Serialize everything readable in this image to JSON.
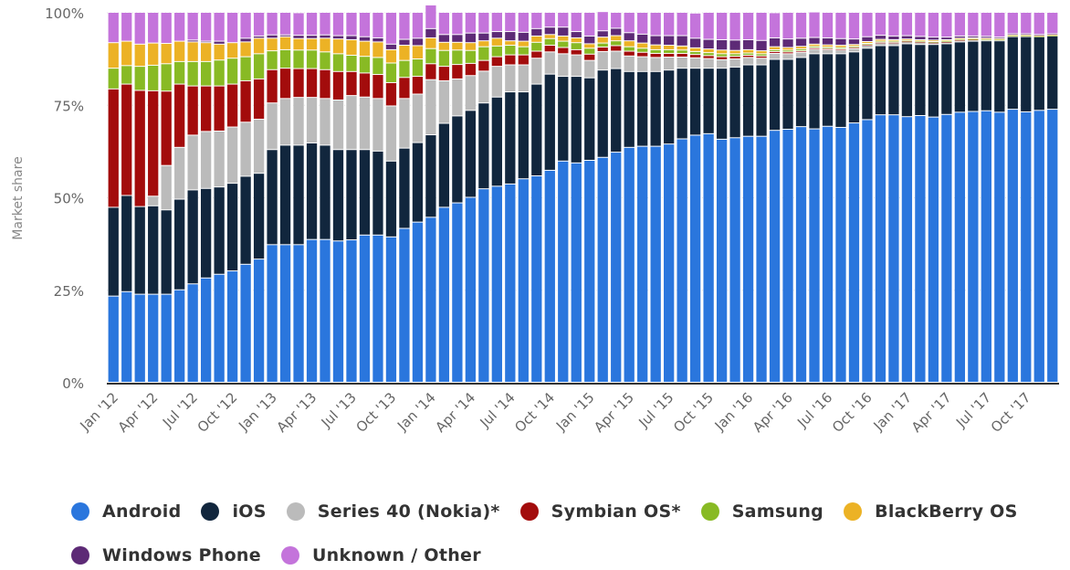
{
  "chart_data": {
    "type": "bar",
    "stacked": true,
    "title": "",
    "xlabel": "",
    "ylabel": "Market share",
    "ylim": [
      0,
      100
    ],
    "y_ticks": [
      "0%",
      "25%",
      "50%",
      "75%",
      "100%"
    ],
    "y_tick_values": [
      0,
      25,
      50,
      75,
      100
    ],
    "grid": true,
    "legend_position": "bottom",
    "x_tick_labels": [
      "Jan '12",
      "Apr '12",
      "Jul '12",
      "Oct '12",
      "Jan '13",
      "Apr '13",
      "Jul '13",
      "Oct '13",
      "Jan '14",
      "Apr '14",
      "Jul '14",
      "Oct '14",
      "Jan '15",
      "Apr '15",
      "Jul '15",
      "Oct '15",
      "Jan '16",
      "Apr '16",
      "Jul '16",
      "Oct '16",
      "Jan '17",
      "Apr '17",
      "Jul '17",
      "Oct '17"
    ],
    "x_tick_every": 3,
    "categories": [
      "Jan '12",
      "Feb '12",
      "Mar '12",
      "Apr '12",
      "May '12",
      "Jun '12",
      "Jul '12",
      "Aug '12",
      "Sep '12",
      "Oct '12",
      "Nov '12",
      "Dec '12",
      "Jan '13",
      "Feb '13",
      "Mar '13",
      "Apr '13",
      "May '13",
      "Jun '13",
      "Jul '13",
      "Aug '13",
      "Sep '13",
      "Oct '13",
      "Nov '13",
      "Dec '13",
      "Jan '14",
      "Feb '14",
      "Mar '14",
      "Apr '14",
      "May '14",
      "Jun '14",
      "Jul '14",
      "Aug '14",
      "Sep '14",
      "Oct '14",
      "Nov '14",
      "Dec '14",
      "Jan '15",
      "Feb '15",
      "Mar '15",
      "Apr '15",
      "May '15",
      "Jun '15",
      "Jul '15",
      "Aug '15",
      "Sep '15",
      "Oct '15",
      "Nov '15",
      "Dec '15",
      "Jan '16",
      "Feb '16",
      "Mar '16",
      "Apr '16",
      "May '16",
      "Jun '16",
      "Jul '16",
      "Aug '16",
      "Sep '16",
      "Oct '16",
      "Nov '16",
      "Dec '16",
      "Jan '17",
      "Feb '17",
      "Mar '17",
      "Apr '17",
      "May '17",
      "Jun '17",
      "Jul '17",
      "Aug '17",
      "Sep '17",
      "Oct '17",
      "Nov '17",
      "Dec '17"
    ],
    "series": [
      {
        "name": "Android",
        "color": "#2a76dd",
        "values": [
          23.3,
          24.5,
          23.8,
          23.8,
          23.8,
          25.0,
          26.6,
          28.2,
          29.2,
          30.1,
          31.9,
          33.3,
          37.2,
          37.2,
          37.2,
          38.6,
          38.6,
          38.2,
          38.5,
          39.8,
          39.8,
          39.3,
          41.6,
          43.3,
          44.6,
          47.3,
          48.5,
          50.0,
          52.3,
          53.0,
          53.6,
          55.0,
          55.8,
          57.3,
          59.8,
          59.3,
          60.0,
          60.8,
          62.2,
          63.5,
          63.8,
          63.8,
          64.4,
          65.8,
          66.8,
          67.2,
          65.7,
          66.1,
          66.5,
          66.5,
          68.1,
          68.4,
          69.1,
          68.5,
          69.2,
          68.9,
          70.1,
          71.0,
          72.3,
          72.3,
          71.8,
          72.1,
          71.7,
          72.4,
          73.0,
          73.2,
          73.4,
          73.0,
          73.8,
          73.1,
          73.5,
          73.8
        ]
      },
      {
        "name": "iOS",
        "color": "#11263d",
        "values": [
          24.0,
          26.0,
          23.7,
          23.9,
          22.8,
          24.5,
          25.4,
          24.2,
          23.6,
          23.7,
          23.8,
          23.2,
          25.7,
          26.9,
          26.9,
          26.1,
          25.5,
          24.7,
          24.4,
          23.1,
          22.7,
          20.5,
          21.7,
          21.5,
          22.3,
          22.7,
          23.5,
          23.5,
          23.2,
          24.1,
          24.9,
          23.5,
          24.8,
          26.0,
          22.9,
          23.4,
          22.3,
          23.6,
          22.6,
          20.5,
          20.2,
          20.2,
          20.0,
          19.1,
          18.1,
          17.7,
          19.2,
          19.1,
          19.3,
          19.3,
          19.2,
          18.9,
          18.7,
          20.3,
          19.6,
          19.9,
          19.2,
          19.3,
          18.7,
          18.7,
          19.7,
          19.2,
          19.6,
          19.1,
          19.0,
          19.0,
          18.9,
          19.3,
          19.6,
          20.3,
          19.9,
          19.8
        ]
      },
      {
        "name": "Series 40 (Nokia)*",
        "color": "#bbbbbb",
        "values": [
          0.0,
          0.0,
          0.0,
          2.6,
          12.0,
          14.0,
          14.8,
          15.4,
          15.1,
          15.2,
          14.6,
          14.6,
          12.6,
          12.6,
          12.9,
          12.3,
          12.6,
          13.4,
          14.6,
          14.2,
          14.2,
          14.9,
          13.4,
          13.1,
          14.9,
          11.5,
          10.0,
          9.4,
          8.6,
          8.3,
          7.3,
          7.3,
          7.0,
          6.0,
          6.1,
          5.8,
          4.7,
          5.0,
          4.7,
          4.2,
          4.0,
          3.8,
          3.5,
          3.0,
          2.8,
          2.6,
          2.3,
          2.2,
          2.0,
          1.8,
          1.6,
          1.5,
          1.4,
          1.2,
          1.1,
          1.0,
          0.9,
          0.8,
          0.7,
          0.7,
          0.6,
          0.6,
          0.5,
          0.5,
          0.4,
          0.4,
          0.3,
          0.3,
          0.2,
          0.2,
          0.1,
          0.1
        ]
      },
      {
        "name": "Symbian OS*",
        "color": "#a30c0c",
        "values": [
          32.0,
          30.1,
          31.4,
          28.5,
          20.1,
          17.1,
          13.3,
          12.3,
          12.2,
          11.6,
          11.2,
          10.9,
          9.0,
          8.2,
          7.8,
          7.8,
          7.8,
          7.7,
          6.5,
          6.5,
          6.5,
          6.3,
          5.7,
          4.8,
          4.3,
          3.9,
          3.9,
          3.3,
          2.9,
          2.6,
          2.7,
          2.7,
          1.9,
          1.8,
          1.7,
          1.4,
          1.7,
          1.2,
          1.5,
          1.3,
          1.2,
          1.1,
          1.0,
          1.0,
          0.9,
          0.8,
          0.8,
          0.7,
          0.6,
          0.6,
          0.5,
          0.5,
          0.4,
          0.4,
          0.3,
          0.3,
          0.3,
          0.2,
          0.2,
          0.2,
          0.1,
          0.1,
          0.1,
          0.1,
          0.1,
          0.1,
          0.0,
          0.0,
          0.0,
          0.0,
          0.0,
          0.0
        ]
      },
      {
        "name": "Samsung",
        "color": "#88ba24",
        "values": [
          5.6,
          5.0,
          6.5,
          6.9,
          7.4,
          6.1,
          6.6,
          6.6,
          7.0,
          7.0,
          6.5,
          6.8,
          5.1,
          5.0,
          5.0,
          5.0,
          4.8,
          4.8,
          4.4,
          4.5,
          4.6,
          5.3,
          4.6,
          4.7,
          4.1,
          4.3,
          3.9,
          3.5,
          3.7,
          2.9,
          2.6,
          2.2,
          2.4,
          1.8,
          1.7,
          1.9,
          1.6,
          1.1,
          1.3,
          1.2,
          1.1,
          1.0,
          1.0,
          0.9,
          0.8,
          0.8,
          0.8,
          0.7,
          0.6,
          0.6,
          0.5,
          0.5,
          0.5,
          0.4,
          0.4,
          0.4,
          0.3,
          0.3,
          0.3,
          0.3,
          0.2,
          0.2,
          0.2,
          0.2,
          0.2,
          0.1,
          0.1,
          0.1,
          0.1,
          0.1,
          0.1,
          0.1
        ]
      },
      {
        "name": "BlackBerry OS",
        "color": "#ecb225",
        "values": [
          6.9,
          6.6,
          6.0,
          6.0,
          5.5,
          5.5,
          5.3,
          5.1,
          4.3,
          4.2,
          4.0,
          4.2,
          3.4,
          3.5,
          3.1,
          3.1,
          3.7,
          4.0,
          4.2,
          4.1,
          4.2,
          3.6,
          4.1,
          3.6,
          2.9,
          2.2,
          2.1,
          2.1,
          1.6,
          2.1,
          1.2,
          1.5,
          1.7,
          1.1,
          1.4,
          1.3,
          1.2,
          1.6,
          1.4,
          1.6,
          1.4,
          1.3,
          1.2,
          1.1,
          1.0,
          1.0,
          1.0,
          0.9,
          0.9,
          0.8,
          0.8,
          0.7,
          0.7,
          0.6,
          0.6,
          0.6,
          0.5,
          0.5,
          0.5,
          0.4,
          0.4,
          0.4,
          0.4,
          0.3,
          0.3,
          0.3,
          0.3,
          0.2,
          0.2,
          0.2,
          0.2,
          0.2
        ]
      },
      {
        "name": "Windows Phone",
        "color": "#5d2a76",
        "values": [
          0.0,
          0.0,
          0.0,
          0.0,
          0.0,
          0.0,
          0.5,
          0.4,
          0.8,
          0.0,
          1.0,
          0.6,
          0.9,
          0.5,
          0.9,
          0.9,
          0.9,
          0.9,
          1.1,
          1.2,
          1.1,
          1.5,
          1.6,
          2.0,
          2.5,
          2.1,
          2.1,
          2.6,
          2.1,
          1.8,
          2.5,
          2.4,
          2.0,
          2.0,
          2.4,
          1.7,
          2.1,
          1.7,
          2.0,
          2.2,
          2.4,
          2.5,
          2.6,
          2.8,
          2.6,
          2.6,
          2.8,
          2.8,
          2.7,
          2.8,
          2.4,
          2.3,
          2.2,
          1.8,
          1.9,
          1.8,
          1.5,
          1.3,
          1.1,
          1.0,
          0.9,
          0.9,
          0.8,
          0.7,
          0.6,
          0.5,
          0.5,
          0.4,
          0.3,
          0.3,
          0.2,
          0.2
        ]
      },
      {
        "name": "Unknown / Other",
        "color": "#c474db",
        "values": [
          8.2,
          7.8,
          8.6,
          8.3,
          8.4,
          7.8,
          7.5,
          7.8,
          7.8,
          8.2,
          7.0,
          6.4,
          6.1,
          6.1,
          6.1,
          6.2,
          6.1,
          6.3,
          6.3,
          6.6,
          6.9,
          8.6,
          7.3,
          7.0,
          6.4,
          6.0,
          6.0,
          5.6,
          5.6,
          5.2,
          5.2,
          5.4,
          4.4,
          4.0,
          4.0,
          5.2,
          6.4,
          5.2,
          4.3,
          5.5,
          5.9,
          6.3,
          6.3,
          6.3,
          6.8,
          7.3,
          7.4,
          7.5,
          7.4,
          7.6,
          6.8,
          7.2,
          7.0,
          6.9,
          6.9,
          7.1,
          7.2,
          6.6,
          6.2,
          6.4,
          6.3,
          6.5,
          6.7,
          6.7,
          6.4,
          6.4,
          6.5,
          6.7,
          5.8,
          5.8,
          6.0,
          5.8
        ]
      }
    ]
  }
}
